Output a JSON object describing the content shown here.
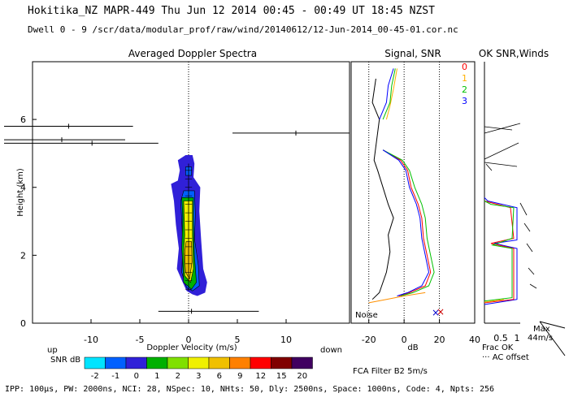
{
  "header": {
    "line1": "Hokitika_NZ  MAPR-449  Thu Jun 12 2014 00:45 - 00:49 UT 18:45 NZST",
    "line2": "Dwell  0 - 9   /scr/data/modular_prof/raw/wind/20140612/12-Jun-2014_00-45-01.cor.nc"
  },
  "footer": {
    "params": "IPP: 100µs, PW: 2000ns, NCI: 28, NSpec: 10, NHts: 50, Dly: 2500ns, Space: 1000ns, Code: 4, Npts: 256"
  },
  "chart_data": [
    {
      "type": "heatmap",
      "title": "Averaged Doppler Spectra",
      "xlabel": "Doppler Velocity (m/s)",
      "ylabel": "Height (km)",
      "xlim": [
        -16,
        16.5
      ],
      "ylim": [
        0,
        7.7
      ],
      "x_ticks": [
        -10,
        -5,
        0,
        5,
        10
      ],
      "y_ticks": [
        0,
        2,
        4,
        6
      ],
      "x_tick_labels": [
        "-10",
        "-5",
        "0",
        "5",
        "10"
      ],
      "y_tick_labels": [
        "0",
        "2",
        "4",
        "6"
      ],
      "left_label": "up",
      "right_label": "down",
      "zero_line": true,
      "contours": [
        {
          "level": 0,
          "points": [
            [
              0.9,
              0.8
            ],
            [
              0.4,
              0.85
            ],
            [
              -0.2,
              0.95
            ],
            [
              -0.6,
              1.2
            ],
            [
              -1.2,
              1.6
            ],
            [
              -1.0,
              2.2
            ],
            [
              -1.3,
              2.9
            ],
            [
              -1.5,
              3.6
            ],
            [
              -1.8,
              4.1
            ],
            [
              -1.1,
              4.2
            ],
            [
              -0.9,
              4.5
            ],
            [
              -1.1,
              4.8
            ],
            [
              -0.3,
              4.95
            ],
            [
              0.4,
              4.95
            ],
            [
              0.6,
              4.7
            ],
            [
              0.5,
              4.3
            ],
            [
              1.2,
              4.0
            ],
            [
              1.1,
              3.3
            ],
            [
              1.3,
              2.4
            ],
            [
              1.5,
              1.6
            ],
            [
              1.9,
              1.2
            ],
            [
              1.7,
              0.9
            ]
          ]
        },
        {
          "level": -1,
          "points": [
            [
              0.4,
              0.95
            ],
            [
              -0.2,
              1.05
            ],
            [
              -0.7,
              1.5
            ],
            [
              -0.6,
              2.3
            ],
            [
              -0.7,
              3.0
            ],
            [
              -0.8,
              3.6
            ],
            [
              -0.5,
              3.9
            ],
            [
              0.6,
              3.9
            ],
            [
              0.7,
              3.2
            ],
            [
              0.6,
              2.5
            ],
            [
              1.0,
              1.7
            ],
            [
              1.1,
              1.1
            ]
          ]
        },
        {
          "level": 0.5,
          "points": [
            [
              0.3,
              1.0
            ],
            [
              -0.5,
              1.2
            ],
            [
              -0.7,
              2.2
            ],
            [
              -0.6,
              3.1
            ],
            [
              -0.7,
              3.7
            ],
            [
              0.5,
              3.7
            ],
            [
              0.5,
              2.9
            ],
            [
              0.6,
              2.0
            ],
            [
              0.8,
              1.2
            ]
          ]
        },
        {
          "level": 2,
          "points": [
            [
              0.2,
              1.2
            ],
            [
              -0.4,
              1.4
            ],
            [
              -0.5,
              2.1
            ],
            [
              -0.4,
              2.6
            ],
            [
              -0.5,
              3.6
            ],
            [
              0.4,
              3.6
            ],
            [
              0.4,
              2.6
            ],
            [
              0.5,
              1.6
            ]
          ]
        },
        {
          "level": 3,
          "points": [
            [
              0.1,
              1.3
            ],
            [
              -0.3,
              1.5
            ],
            [
              -0.4,
              2.05
            ],
            [
              -0.25,
              2.4
            ],
            [
              0.3,
              2.4
            ],
            [
              0.35,
              1.8
            ]
          ]
        },
        {
          "level": -1,
          "points": [
            [
              -0.3,
              4.35
            ],
            [
              0.3,
              4.35
            ],
            [
              0.3,
              4.6
            ],
            [
              -0.3,
              4.6
            ]
          ]
        }
      ],
      "error_bars": [
        {
          "height": 0.35,
          "center": 0.3,
          "left": -3.1,
          "right": 7.2
        },
        {
          "height": 5.3,
          "center": -9.9,
          "left": -20,
          "right": -3.1
        },
        {
          "height": 5.4,
          "center": -13.0,
          "left": -20,
          "right": -6.5
        },
        {
          "height": 5.8,
          "center": -12.3,
          "left": -20,
          "right": -5.7
        },
        {
          "height": 5.6,
          "center": 11.0,
          "left": 4.5,
          "right": 16.5
        }
      ],
      "colorbar": {
        "label": "SNR dB",
        "ticks": [
          "-2",
          "-1",
          "0",
          "1",
          "2",
          "3",
          "6",
          "9",
          "12",
          "15",
          "20"
        ],
        "colors": [
          "#00e4ff",
          "#0060ff",
          "#3020d8",
          "#00b000",
          "#80e000",
          "#f0f000",
          "#f0c000",
          "#ff8000",
          "#ff0000",
          "#800000",
          "#400060"
        ]
      }
    },
    {
      "type": "line",
      "title": "Signal, SNR",
      "xlabel": "dB",
      "xlim": [
        -30,
        40
      ],
      "ylim": [
        0,
        7.7
      ],
      "x_ticks": [
        -20,
        0,
        20,
        40
      ],
      "x_tick_labels": [
        "-20",
        "0",
        "20",
        "40"
      ],
      "dotted_lines": [
        -20,
        0,
        20
      ],
      "annotation": "Noise",
      "series": [
        {
          "color": "#000000",
          "points": [
            [
              -18,
              0.7
            ],
            [
              -14,
              0.9
            ],
            [
              -10,
              1.5
            ],
            [
              -8,
              2.1
            ],
            [
              -9,
              2.6
            ],
            [
              -6,
              3.1
            ],
            [
              -9,
              3.5
            ],
            [
              -12,
              4.0
            ],
            [
              -15,
              4.5
            ],
            [
              -17,
              4.8
            ],
            [
              -14,
              6.0
            ],
            [
              -18,
              6.5
            ],
            [
              -16,
              7.2
            ]
          ]
        },
        {
          "color": "#ff0000",
          "points": [
            [
              -3,
              0.8
            ],
            [
              3,
              0.9
            ],
            [
              12,
              1.1
            ],
            [
              15,
              1.5
            ],
            [
              13,
              2.0
            ],
            [
              11,
              2.5
            ],
            [
              10,
              3.1
            ],
            [
              8,
              3.5
            ],
            [
              4,
              4.0
            ],
            [
              2,
              4.5
            ],
            [
              -2,
              4.8
            ],
            [
              -12,
              5.1
            ]
          ]
        },
        {
          "color": "#00c000",
          "points": [
            [
              -2,
              0.8
            ],
            [
              5,
              0.9
            ],
            [
              14,
              1.1
            ],
            [
              17,
              1.5
            ],
            [
              15,
              2.0
            ],
            [
              13,
              2.5
            ],
            [
              12,
              3.1
            ],
            [
              10,
              3.5
            ],
            [
              6,
              4.0
            ],
            [
              3,
              4.5
            ],
            [
              -1,
              4.8
            ],
            [
              -12,
              5.1
            ]
          ]
        },
        {
          "color": "#0000ff",
          "points": [
            [
              -4,
              0.8
            ],
            [
              2,
              0.9
            ],
            [
              10,
              1.1
            ],
            [
              14,
              1.5
            ],
            [
              12,
              2.0
            ],
            [
              10,
              2.5
            ],
            [
              9,
              3.1
            ],
            [
              7,
              3.5
            ],
            [
              3,
              4.0
            ],
            [
              1,
              4.5
            ],
            [
              -3,
              4.8
            ],
            [
              -12,
              5.1
            ]
          ]
        },
        {
          "color": "#ff9000",
          "points": [
            [
              -20,
              0.6
            ],
            [
              -10,
              0.7
            ],
            [
              0,
              0.8
            ],
            [
              12,
              0.9
            ]
          ]
        },
        {
          "color": "#ffb000",
          "points": [
            [
              -10,
              6.0
            ],
            [
              -8,
              6.4
            ],
            [
              -6,
              6.9
            ],
            [
              -4,
              7.5
            ]
          ]
        },
        {
          "color": "#00c000",
          "points": [
            [
              -12,
              6.0
            ],
            [
              -8,
              6.5
            ],
            [
              -7,
              7.0
            ],
            [
              -5,
              7.5
            ]
          ]
        },
        {
          "color": "#0000ff",
          "points": [
            [
              -14,
              6.0
            ],
            [
              -10,
              6.5
            ],
            [
              -9,
              7.0
            ],
            [
              -6,
              7.5
            ]
          ]
        }
      ]
    },
    {
      "type": "line",
      "title": "OK SNR,Winds",
      "legend": [
        "0",
        "1",
        "2",
        "3"
      ],
      "legend_colors": [
        "#ff0000",
        "#ffb000",
        "#00c000",
        "#0000ff"
      ],
      "xlabel": "Frac OK",
      "x_ticks": [
        0.5,
        1
      ],
      "x_tick_labels": [
        "0.5",
        "1"
      ],
      "xlim": [
        0,
        1.1
      ],
      "note": "AC offset",
      "max_label": "Max",
      "max_value_label": "44m/s"
    }
  ]
}
